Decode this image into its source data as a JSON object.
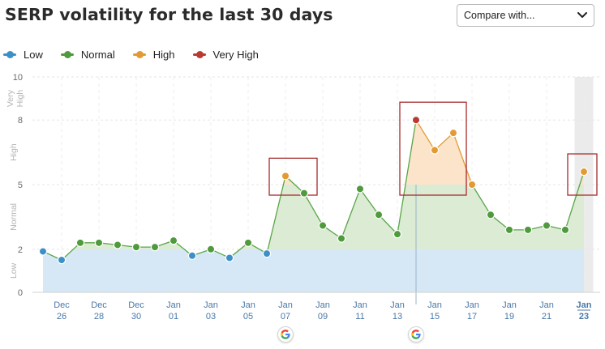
{
  "header": {
    "title": "SERP volatility for the last 30 days",
    "compare_label": "Compare with..."
  },
  "legend": [
    {
      "label": "Low",
      "color": "#3d8fc7"
    },
    {
      "label": "Normal",
      "color": "#4e9a3c"
    },
    {
      "label": "High",
      "color": "#e39a32"
    },
    {
      "label": "Very High",
      "color": "#b83a32"
    }
  ],
  "icons": {
    "dropdown": "chevron-down-icon",
    "event_marker": "google-g-icon"
  },
  "chart_data": {
    "type": "area",
    "title": "SERP volatility for the last 30 days",
    "ylim": [
      0,
      10
    ],
    "yticks": [
      "0",
      "2",
      "5",
      "8",
      "10"
    ],
    "y_bands": [
      {
        "label": "Low",
        "from": 0,
        "to": 2
      },
      {
        "label": "Normal",
        "from": 2,
        "to": 5
      },
      {
        "label": "High",
        "from": 5,
        "to": 8
      },
      {
        "label": "Very High",
        "from": 8,
        "to": 10
      }
    ],
    "x_ticks": [
      {
        "month": "Dec",
        "day": "26"
      },
      {
        "month": "Dec",
        "day": "28"
      },
      {
        "month": "Dec",
        "day": "30"
      },
      {
        "month": "Jan",
        "day": "01"
      },
      {
        "month": "Jan",
        "day": "03"
      },
      {
        "month": "Jan",
        "day": "05"
      },
      {
        "month": "Jan",
        "day": "07"
      },
      {
        "month": "Jan",
        "day": "09"
      },
      {
        "month": "Jan",
        "day": "11"
      },
      {
        "month": "Jan",
        "day": "13"
      },
      {
        "month": "Jan",
        "day": "15"
      },
      {
        "month": "Jan",
        "day": "17"
      },
      {
        "month": "Jan",
        "day": "19"
      },
      {
        "month": "Jan",
        "day": "21"
      },
      {
        "month": "Jan",
        "day": "23"
      }
    ],
    "series": [
      {
        "values": [
          1.9,
          1.5,
          2.3,
          2.3,
          2.2,
          2.1,
          2.1,
          2.4,
          1.7,
          2.0,
          1.6,
          2.3,
          1.8,
          5.4,
          4.6,
          3.1,
          2.5,
          4.8,
          3.6,
          2.7,
          8.0,
          6.6,
          7.4,
          5.0,
          3.6,
          2.9,
          2.9,
          3.1,
          2.9,
          5.6
        ]
      }
    ],
    "event_markers": [
      "Jan 07",
      "Jan 14"
    ],
    "highlight_boxes": [
      {
        "from": "Jan 07",
        "to": "Jan 08"
      },
      {
        "from": "Jan 14",
        "to": "Jan 16"
      },
      {
        "from": "Jan 23",
        "to": "Jan 23"
      }
    ],
    "highlighted_day": "Jan 23",
    "grid": true
  }
}
